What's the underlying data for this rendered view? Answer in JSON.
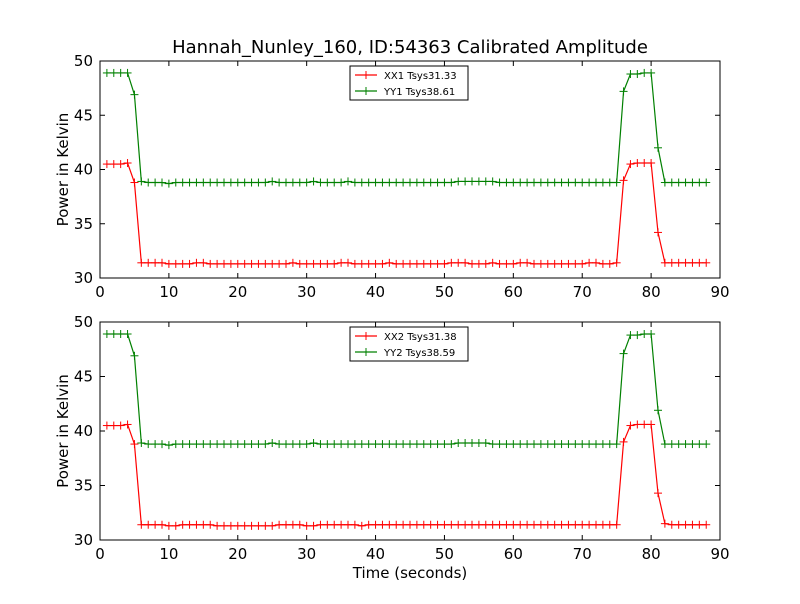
{
  "title": "Hannah_Nunley_160, ID:54363 Calibrated Amplitude",
  "xlabel": "Time (seconds)",
  "colors": {
    "xx": "#ff0000",
    "yy": "#008000"
  },
  "chart_data": [
    {
      "type": "line",
      "ylabel": "Power in Kelvin",
      "xlim": [
        0,
        90
      ],
      "ylim": [
        30,
        50
      ],
      "xticks": [
        "0",
        "10",
        "20",
        "30",
        "40",
        "50",
        "60",
        "70",
        "80",
        "90"
      ],
      "yticks": [
        "30",
        "35",
        "40",
        "45",
        "50"
      ],
      "legend_position": "top-center",
      "grid": false,
      "series": [
        {
          "name": "XX1 Tsys31.33",
          "color": "#ff0000",
          "x": [
            1,
            2,
            3,
            4,
            5,
            6,
            7,
            8,
            9,
            10,
            11,
            12,
            13,
            14,
            15,
            16,
            17,
            18,
            19,
            20,
            21,
            22,
            23,
            24,
            25,
            26,
            27,
            28,
            29,
            30,
            31,
            32,
            33,
            34,
            35,
            36,
            37,
            38,
            39,
            40,
            41,
            42,
            43,
            44,
            45,
            46,
            47,
            48,
            49,
            50,
            51,
            52,
            53,
            54,
            55,
            56,
            57,
            58,
            59,
            60,
            61,
            62,
            63,
            64,
            65,
            66,
            67,
            68,
            69,
            70,
            71,
            72,
            73,
            74,
            75,
            76,
            77,
            78,
            79,
            80,
            81,
            82,
            83,
            84,
            85,
            86,
            87,
            88
          ],
          "y": [
            40.5,
            40.5,
            40.5,
            40.6,
            38.8,
            31.4,
            31.4,
            31.4,
            31.4,
            31.3,
            31.3,
            31.3,
            31.3,
            31.4,
            31.4,
            31.3,
            31.3,
            31.3,
            31.3,
            31.3,
            31.3,
            31.3,
            31.3,
            31.3,
            31.3,
            31.3,
            31.3,
            31.4,
            31.3,
            31.3,
            31.3,
            31.3,
            31.3,
            31.3,
            31.4,
            31.4,
            31.3,
            31.3,
            31.3,
            31.3,
            31.3,
            31.4,
            31.3,
            31.3,
            31.3,
            31.3,
            31.3,
            31.3,
            31.3,
            31.3,
            31.4,
            31.4,
            31.4,
            31.3,
            31.3,
            31.3,
            31.4,
            31.3,
            31.3,
            31.3,
            31.4,
            31.4,
            31.3,
            31.3,
            31.3,
            31.3,
            31.3,
            31.3,
            31.3,
            31.3,
            31.4,
            31.4,
            31.3,
            31.3,
            31.4,
            39.0,
            40.5,
            40.6,
            40.6,
            40.6,
            34.2,
            31.4,
            31.4,
            31.4,
            31.4,
            31.4,
            31.4,
            31.4
          ]
        },
        {
          "name": "YY1 Tsys38.61",
          "color": "#008000",
          "x": [
            1,
            2,
            3,
            4,
            5,
            6,
            7,
            8,
            9,
            10,
            11,
            12,
            13,
            14,
            15,
            16,
            17,
            18,
            19,
            20,
            21,
            22,
            23,
            24,
            25,
            26,
            27,
            28,
            29,
            30,
            31,
            32,
            33,
            34,
            35,
            36,
            37,
            38,
            39,
            40,
            41,
            42,
            43,
            44,
            45,
            46,
            47,
            48,
            49,
            50,
            51,
            52,
            53,
            54,
            55,
            56,
            57,
            58,
            59,
            60,
            61,
            62,
            63,
            64,
            65,
            66,
            67,
            68,
            69,
            70,
            71,
            72,
            73,
            74,
            75,
            76,
            77,
            78,
            79,
            80,
            81,
            82,
            83,
            84,
            85,
            86,
            87,
            88
          ],
          "y": [
            48.9,
            48.9,
            48.9,
            48.9,
            46.9,
            38.9,
            38.8,
            38.8,
            38.8,
            38.7,
            38.8,
            38.8,
            38.8,
            38.8,
            38.8,
            38.8,
            38.8,
            38.8,
            38.8,
            38.8,
            38.8,
            38.8,
            38.8,
            38.8,
            38.9,
            38.8,
            38.8,
            38.8,
            38.8,
            38.8,
            38.9,
            38.8,
            38.8,
            38.8,
            38.8,
            38.9,
            38.8,
            38.8,
            38.8,
            38.8,
            38.8,
            38.8,
            38.8,
            38.8,
            38.8,
            38.8,
            38.8,
            38.8,
            38.8,
            38.8,
            38.8,
            38.9,
            38.9,
            38.9,
            38.9,
            38.9,
            38.9,
            38.8,
            38.8,
            38.8,
            38.8,
            38.8,
            38.8,
            38.8,
            38.8,
            38.8,
            38.8,
            38.8,
            38.8,
            38.8,
            38.8,
            38.8,
            38.8,
            38.8,
            38.8,
            47.2,
            48.8,
            48.8,
            48.9,
            48.9,
            42.0,
            38.8,
            38.8,
            38.8,
            38.8,
            38.8,
            38.8,
            38.8
          ]
        }
      ]
    },
    {
      "type": "line",
      "ylabel": "Power in Kelvin",
      "xlabel": "Time (seconds)",
      "xlim": [
        0,
        90
      ],
      "ylim": [
        30,
        50
      ],
      "xticks": [
        "0",
        "10",
        "20",
        "30",
        "40",
        "50",
        "60",
        "70",
        "80",
        "90"
      ],
      "yticks": [
        "30",
        "35",
        "40",
        "45",
        "50"
      ],
      "legend_position": "top-center",
      "grid": false,
      "series": [
        {
          "name": "XX2 Tsys31.38",
          "color": "#ff0000",
          "x": [
            1,
            2,
            3,
            4,
            5,
            6,
            7,
            8,
            9,
            10,
            11,
            12,
            13,
            14,
            15,
            16,
            17,
            18,
            19,
            20,
            21,
            22,
            23,
            24,
            25,
            26,
            27,
            28,
            29,
            30,
            31,
            32,
            33,
            34,
            35,
            36,
            37,
            38,
            39,
            40,
            41,
            42,
            43,
            44,
            45,
            46,
            47,
            48,
            49,
            50,
            51,
            52,
            53,
            54,
            55,
            56,
            57,
            58,
            59,
            60,
            61,
            62,
            63,
            64,
            65,
            66,
            67,
            68,
            69,
            70,
            71,
            72,
            73,
            74,
            75,
            76,
            77,
            78,
            79,
            80,
            81,
            82,
            83,
            84,
            85,
            86,
            87,
            88
          ],
          "y": [
            40.5,
            40.5,
            40.5,
            40.6,
            38.8,
            31.4,
            31.4,
            31.4,
            31.4,
            31.3,
            31.3,
            31.4,
            31.4,
            31.4,
            31.4,
            31.4,
            31.3,
            31.3,
            31.3,
            31.3,
            31.3,
            31.3,
            31.3,
            31.3,
            31.3,
            31.4,
            31.4,
            31.4,
            31.4,
            31.3,
            31.3,
            31.4,
            31.4,
            31.4,
            31.4,
            31.4,
            31.4,
            31.3,
            31.4,
            31.4,
            31.4,
            31.4,
            31.4,
            31.4,
            31.4,
            31.4,
            31.4,
            31.4,
            31.4,
            31.4,
            31.4,
            31.4,
            31.4,
            31.4,
            31.4,
            31.4,
            31.4,
            31.4,
            31.4,
            31.4,
            31.4,
            31.4,
            31.4,
            31.4,
            31.4,
            31.4,
            31.4,
            31.4,
            31.4,
            31.4,
            31.4,
            31.4,
            31.4,
            31.4,
            31.4,
            39.0,
            40.5,
            40.6,
            40.6,
            40.6,
            34.3,
            31.5,
            31.4,
            31.4,
            31.4,
            31.4,
            31.4,
            31.4
          ]
        },
        {
          "name": "YY2 Tsys38.59",
          "color": "#008000",
          "x": [
            1,
            2,
            3,
            4,
            5,
            6,
            7,
            8,
            9,
            10,
            11,
            12,
            13,
            14,
            15,
            16,
            17,
            18,
            19,
            20,
            21,
            22,
            23,
            24,
            25,
            26,
            27,
            28,
            29,
            30,
            31,
            32,
            33,
            34,
            35,
            36,
            37,
            38,
            39,
            40,
            41,
            42,
            43,
            44,
            45,
            46,
            47,
            48,
            49,
            50,
            51,
            52,
            53,
            54,
            55,
            56,
            57,
            58,
            59,
            60,
            61,
            62,
            63,
            64,
            65,
            66,
            67,
            68,
            69,
            70,
            71,
            72,
            73,
            74,
            75,
            76,
            77,
            78,
            79,
            80,
            81,
            82,
            83,
            84,
            85,
            86,
            87,
            88
          ],
          "y": [
            48.9,
            48.9,
            48.9,
            48.9,
            46.9,
            38.9,
            38.8,
            38.8,
            38.8,
            38.7,
            38.8,
            38.8,
            38.8,
            38.8,
            38.8,
            38.8,
            38.8,
            38.8,
            38.8,
            38.8,
            38.8,
            38.8,
            38.8,
            38.8,
            38.9,
            38.8,
            38.8,
            38.8,
            38.8,
            38.8,
            38.9,
            38.8,
            38.8,
            38.8,
            38.8,
            38.8,
            38.8,
            38.8,
            38.8,
            38.8,
            38.8,
            38.8,
            38.8,
            38.8,
            38.8,
            38.8,
            38.8,
            38.8,
            38.8,
            38.8,
            38.8,
            38.9,
            38.9,
            38.9,
            38.9,
            38.9,
            38.8,
            38.8,
            38.8,
            38.8,
            38.8,
            38.8,
            38.8,
            38.8,
            38.8,
            38.8,
            38.8,
            38.8,
            38.8,
            38.8,
            38.8,
            38.8,
            38.8,
            38.8,
            38.8,
            47.1,
            48.8,
            48.8,
            48.9,
            48.9,
            41.9,
            38.8,
            38.8,
            38.8,
            38.8,
            38.8,
            38.8,
            38.8
          ]
        }
      ]
    }
  ]
}
